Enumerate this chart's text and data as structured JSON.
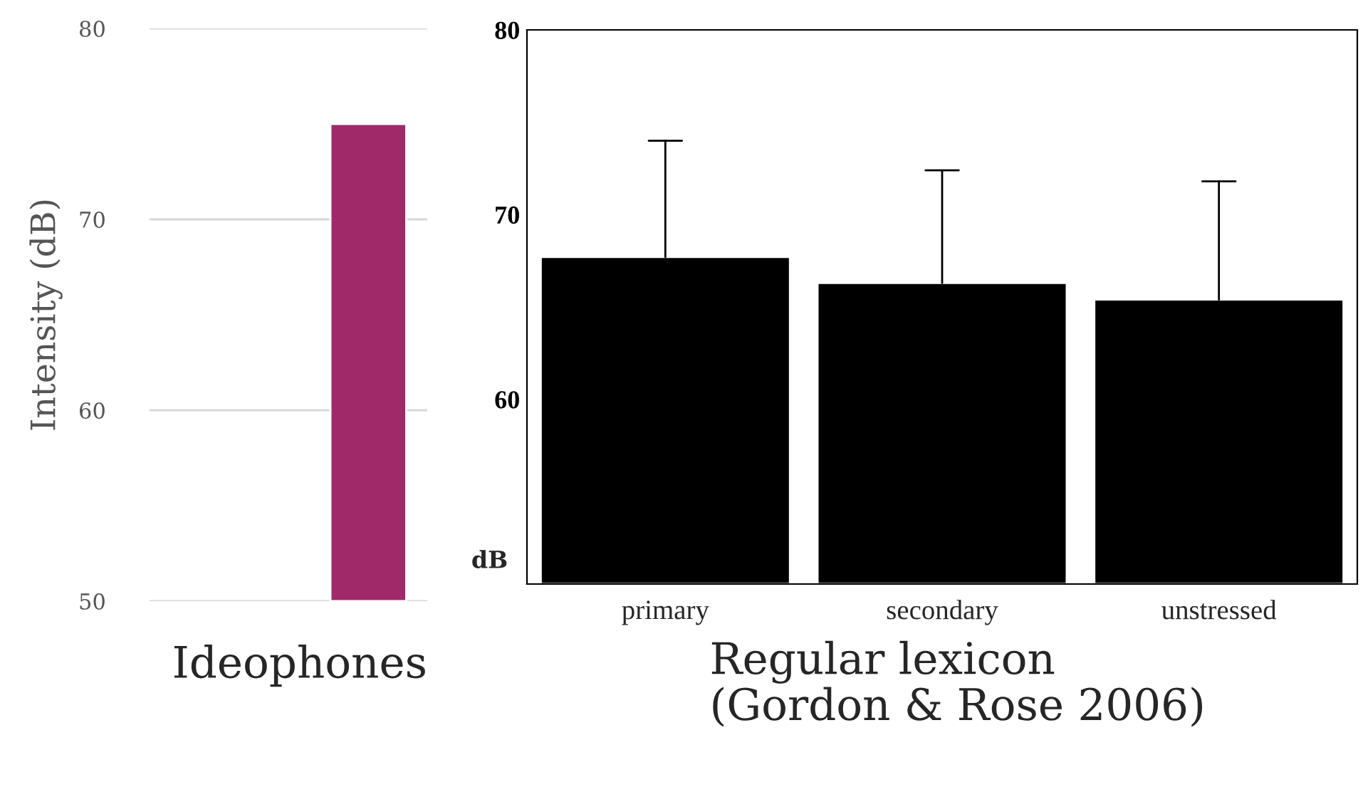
{
  "chart_data": [
    {
      "type": "bar",
      "categories": [
        null
      ],
      "values": [
        75
      ],
      "color": "#a0296a",
      "ylabel": "Intensity (dB)",
      "xlabel": "Ideophones",
      "ylim": [
        50,
        80
      ],
      "yticks": [
        50,
        60,
        70,
        80
      ],
      "grid": "y",
      "tick_labels": "y"
    },
    {
      "type": "bar",
      "categories": [
        "primary",
        "secondary",
        "unstressed"
      ],
      "values": [
        67.7,
        66.3,
        65.4
      ],
      "errors": [
        [
          67.7,
          74.0
        ],
        [
          66.3,
          72.4
        ],
        [
          65.4,
          71.8
        ]
      ],
      "color": "#000000",
      "ylabel": "dB",
      "xlabel": "Regular lexicon\n(Gordon & Rose 2006)",
      "ylim": [
        50,
        80
      ],
      "yticks": [
        60,
        70,
        80
      ],
      "grid": false
    }
  ]
}
